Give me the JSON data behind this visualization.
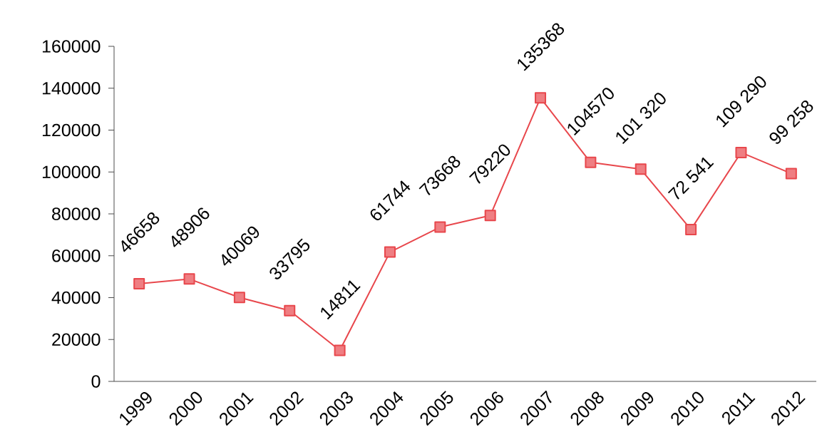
{
  "chart_data": {
    "type": "line",
    "categories": [
      "1999",
      "2000",
      "2001",
      "2002",
      "2003",
      "2004",
      "2005",
      "2006",
      "2007",
      "2008",
      "2009",
      "2010",
      "2011",
      "2012"
    ],
    "series": [
      {
        "color": "#e8474c",
        "values": [
          46658,
          48906,
          40069,
          33795,
          14811,
          61744,
          73668,
          79220,
          135368,
          104570,
          101320,
          72541,
          109290,
          99258
        ],
        "value_labels": [
          "46658",
          "48906",
          "40069",
          "33795",
          "14811",
          "61744",
          "73668",
          "79220",
          "135368",
          "104570",
          "101 320",
          "72 541",
          "109 290",
          "99 258"
        ]
      }
    ],
    "ylim": [
      0,
      160000
    ],
    "yticks": [
      0,
      20000,
      40000,
      60000,
      80000,
      100000,
      120000,
      140000,
      160000
    ],
    "marker": "square",
    "line_style": "solid"
  }
}
